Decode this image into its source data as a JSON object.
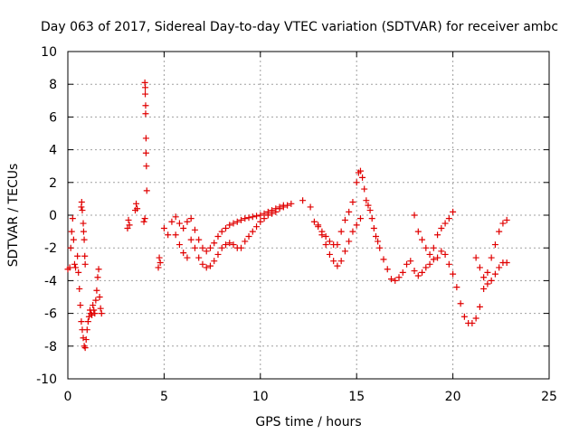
{
  "chart_data": {
    "type": "scatter",
    "title": "Day 063 of 2017, Sidereal Day-to-day VTEC variation (SDTVAR) for receiver ambc",
    "xlabel": "GPS time / hours",
    "ylabel": "SDTVAR / TECUs",
    "xlim": [
      0,
      25
    ],
    "ylim": [
      -10,
      10
    ],
    "x_ticks": [
      0,
      5,
      10,
      15,
      20,
      25
    ],
    "y_ticks": [
      -10,
      -8,
      -6,
      -4,
      -2,
      0,
      2,
      4,
      6,
      8,
      10
    ],
    "grid": true,
    "marker": "+",
    "color": "#e00000",
    "series": [
      {
        "name": "SDTVAR",
        "x": [
          0.0,
          0.1,
          0.15,
          0.2,
          0.25,
          0.3,
          0.35,
          0.4,
          0.5,
          0.55,
          0.6,
          0.65,
          0.7,
          0.75,
          0.8,
          0.85,
          0.9,
          0.95,
          1.0,
          1.05,
          1.1,
          1.15,
          1.2,
          1.25,
          1.3,
          1.35,
          1.4,
          1.45,
          1.5,
          1.55,
          1.6,
          1.65,
          1.7,
          1.75,
          0.7,
          0.72,
          0.75,
          0.8,
          0.82,
          0.85,
          0.88,
          0.9,
          3.1,
          3.15,
          3.2,
          3.5,
          3.55,
          3.6,
          3.95,
          4.0,
          4.0,
          4.02,
          4.02,
          4.04,
          4.04,
          4.06,
          4.06,
          4.08,
          4.1,
          4.7,
          4.75,
          4.8,
          5.0,
          5.2,
          5.4,
          5.6,
          5.8,
          6.0,
          6.2,
          6.4,
          6.6,
          6.8,
          7.0,
          7.2,
          7.4,
          7.6,
          7.8,
          8.0,
          8.2,
          8.4,
          8.6,
          8.8,
          9.0,
          9.2,
          9.4,
          9.6,
          9.8,
          10.0,
          10.2,
          10.4,
          10.6,
          10.8,
          11.0,
          11.2,
          11.4,
          11.6,
          5.6,
          5.8,
          6.0,
          6.2,
          6.4,
          6.6,
          6.8,
          7.0,
          7.2,
          7.4,
          7.6,
          7.8,
          8.0,
          8.2,
          8.4,
          8.6,
          8.8,
          9.0,
          9.2,
          9.4,
          9.6,
          9.8,
          10.0,
          10.2,
          10.4,
          10.6,
          10.8,
          11.0,
          11.2,
          12.2,
          12.6,
          12.8,
          13.0,
          13.2,
          13.4,
          13.6,
          13.8,
          14.0,
          14.2,
          14.4,
          14.6,
          14.8,
          15.0,
          15.1,
          15.2,
          15.3,
          15.4,
          15.5,
          15.6,
          15.7,
          15.8,
          15.9,
          16.0,
          16.1,
          16.2,
          13.0,
          13.2,
          13.4,
          13.6,
          13.8,
          14.0,
          14.2,
          14.4,
          14.6,
          14.8,
          15.0,
          15.2,
          16.4,
          16.6,
          16.8,
          17.0,
          17.2,
          17.4,
          17.6,
          17.8,
          18.0,
          18.2,
          18.4,
          18.6,
          18.8,
          19.0,
          19.2,
          19.4,
          19.6,
          19.8,
          20.0,
          18.0,
          18.2,
          18.4,
          18.6,
          18.8,
          19.0,
          19.2,
          19.4,
          19.6,
          19.8,
          20.0,
          20.2,
          20.4,
          20.6,
          20.8,
          21.0,
          21.2,
          21.4,
          21.6,
          21.8,
          22.0,
          22.2,
          22.4,
          22.6,
          22.8,
          21.2,
          21.4,
          21.6,
          21.8,
          22.0,
          22.2,
          22.4,
          22.6,
          22.8
        ],
        "y": [
          -3.3,
          -3.2,
          -2.0,
          -1.0,
          -0.2,
          -1.5,
          -3.0,
          -3.2,
          -2.5,
          -3.5,
          -4.5,
          -5.5,
          -6.5,
          -7.0,
          -7.5,
          -8.0,
          -8.1,
          -7.6,
          -7.0,
          -6.5,
          -6.2,
          -5.8,
          -6.0,
          -6.1,
          -5.5,
          -5.8,
          -6.0,
          -5.2,
          -4.6,
          -3.8,
          -3.3,
          -5.0,
          -5.7,
          -6.0,
          0.5,
          0.8,
          0.3,
          -0.5,
          -1.0,
          -1.5,
          -2.5,
          -3.0,
          -0.8,
          -0.3,
          -0.6,
          0.3,
          0.7,
          0.4,
          -0.4,
          -0.2,
          8.1,
          7.8,
          7.4,
          6.7,
          6.2,
          4.7,
          3.8,
          3.0,
          1.5,
          -3.2,
          -2.6,
          -2.9,
          -0.8,
          -1.2,
          -0.4,
          -0.1,
          -0.5,
          -0.8,
          -0.4,
          -0.2,
          -0.9,
          -1.5,
          -2.0,
          -2.2,
          -2.0,
          -1.7,
          -1.3,
          -1.0,
          -0.8,
          -0.6,
          -0.5,
          -0.4,
          -0.3,
          -0.2,
          -0.15,
          -0.1,
          -0.05,
          0.0,
          0.1,
          0.2,
          0.3,
          0.4,
          0.5,
          0.5,
          0.6,
          0.7,
          -1.2,
          -1.8,
          -2.3,
          -2.6,
          -1.5,
          -2.0,
          -2.6,
          -3.0,
          -3.2,
          -3.1,
          -2.8,
          -2.4,
          -2.0,
          -1.8,
          -1.7,
          -1.8,
          -2.0,
          -2.0,
          -1.6,
          -1.3,
          -1.0,
          -0.7,
          -0.4,
          -0.2,
          0.0,
          0.1,
          0.2,
          0.4,
          0.6,
          0.9,
          0.5,
          -0.4,
          -0.7,
          -1.0,
          -1.3,
          -1.6,
          -1.8,
          -1.8,
          -1.0,
          -0.3,
          0.2,
          0.8,
          2.0,
          2.6,
          2.7,
          2.3,
          1.6,
          0.9,
          0.6,
          0.3,
          -0.2,
          -0.8,
          -1.3,
          -1.6,
          -2.0,
          -0.6,
          -1.2,
          -1.8,
          -2.4,
          -2.8,
          -3.1,
          -2.8,
          -2.2,
          -1.6,
          -1.0,
          -0.6,
          -0.2,
          -2.7,
          -3.3,
          -3.9,
          -4.0,
          -3.8,
          -3.5,
          -3.0,
          -2.8,
          0.0,
          -1.0,
          -1.5,
          -2.0,
          -2.4,
          -2.0,
          -1.2,
          -0.8,
          -0.5,
          -0.2,
          0.2,
          -3.4,
          -3.7,
          -3.5,
          -3.2,
          -3.0,
          -2.7,
          -2.6,
          -2.2,
          -2.4,
          -3.0,
          -3.6,
          -4.4,
          -5.4,
          -6.2,
          -6.6,
          -6.6,
          -6.3,
          -5.6,
          -4.5,
          -3.5,
          -2.6,
          -1.8,
          -1.0,
          -0.5,
          -0.3,
          -2.6,
          -3.2,
          -3.8,
          -4.2,
          -4.0,
          -3.6,
          -3.2,
          -2.9,
          -2.9
        ]
      }
    ]
  }
}
